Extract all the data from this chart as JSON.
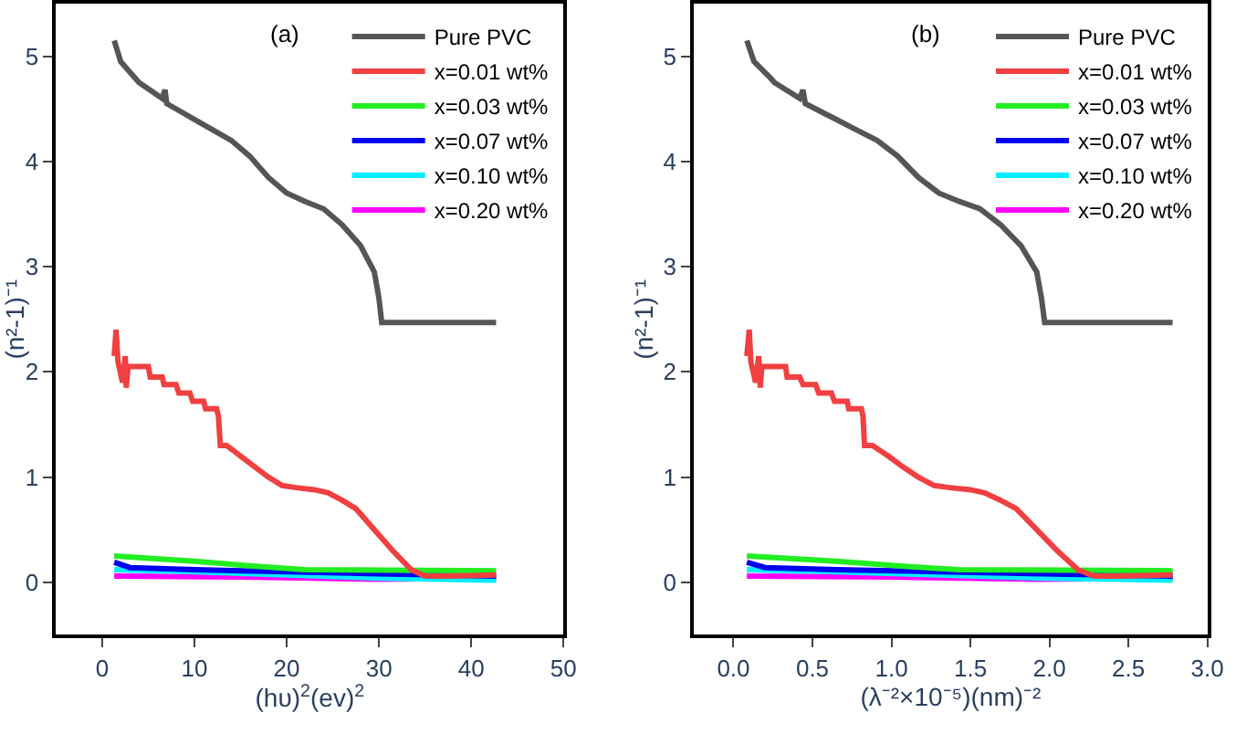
{
  "chart_data": [
    {
      "type": "line",
      "title": "(a)",
      "xlabel": "(hυ)$^{2}$(ev)$^{2}$",
      "ylabel": "(n²-1)⁻¹",
      "xlim": [
        -5,
        50
      ],
      "ylim": [
        -0.5,
        5.5
      ],
      "xticks": [
        0,
        10,
        20,
        30,
        40,
        50
      ],
      "yticks": [
        0,
        1,
        2,
        3,
        4,
        5
      ],
      "legend": "top right",
      "marker": "none",
      "line_style": "solid",
      "series": [
        {
          "name": "Pure PVC",
          "color": "#555555",
          "x": [
            1.3,
            2,
            3.5,
            4,
            6.5,
            6.8,
            7,
            8,
            10,
            12,
            14,
            16,
            18,
            20,
            22,
            24,
            26,
            28,
            29.5,
            30,
            30.3,
            42.7
          ],
          "values": [
            5.15,
            4.95,
            4.8,
            4.75,
            4.6,
            4.68,
            4.55,
            4.5,
            4.4,
            4.3,
            4.2,
            4.05,
            3.85,
            3.7,
            3.62,
            3.55,
            3.4,
            3.2,
            2.95,
            2.7,
            2.47,
            2.47
          ]
        },
        {
          "name": "x=0.01 wt%",
          "color": "#f04040",
          "x": [
            1.3,
            1.5,
            1.7,
            2.2,
            2.5,
            2.6,
            2.8,
            5,
            5.2,
            6.5,
            6.7,
            8,
            8.3,
            9.5,
            9.8,
            11,
            11.2,
            12.4,
            12.6,
            12.8,
            13.5,
            15,
            16.5,
            18,
            19.5,
            21,
            23,
            24.5,
            26,
            27.5,
            29.5,
            31.5,
            33.5,
            35,
            38,
            42.7
          ],
          "values": [
            2.15,
            2.4,
            2.1,
            1.9,
            2.15,
            1.85,
            2.05,
            2.05,
            1.95,
            1.95,
            1.88,
            1.88,
            1.8,
            1.8,
            1.72,
            1.72,
            1.65,
            1.65,
            1.58,
            1.3,
            1.3,
            1.2,
            1.1,
            1.0,
            0.92,
            0.9,
            0.88,
            0.85,
            0.78,
            0.7,
            0.5,
            0.3,
            0.12,
            0.06,
            0.06,
            0.07
          ]
        },
        {
          "name": "x=0.03 wt%",
          "color": "#22ee22",
          "x": [
            1.3,
            10,
            17,
            22,
            42.7
          ],
          "values": [
            0.25,
            0.2,
            0.15,
            0.12,
            0.11
          ]
        },
        {
          "name": "x=0.07 wt%",
          "color": "#0000ee",
          "x": [
            1.3,
            3,
            10,
            20,
            30,
            42.7
          ],
          "values": [
            0.19,
            0.14,
            0.12,
            0.1,
            0.08,
            0.06
          ]
        },
        {
          "name": "x=0.10 wt%",
          "color": "#00eeff",
          "x": [
            1.3,
            10,
            20,
            30,
            42.7
          ],
          "values": [
            0.12,
            0.1,
            0.07,
            0.04,
            0.02
          ]
        },
        {
          "name": "x=0.20 wt%",
          "color": "#ff00ff",
          "x": [
            1.3,
            15,
            30,
            42.7
          ],
          "values": [
            0.06,
            0.05,
            0.03,
            0.04
          ]
        }
      ]
    },
    {
      "type": "line",
      "title": "(b)",
      "xlabel": "(λ⁻²×10⁻⁵)(nm)⁻²",
      "ylabel": "(n²-1)⁻¹",
      "xlim": [
        -0.25,
        3.0
      ],
      "ylim": [
        -0.5,
        5.5
      ],
      "xticks": [
        {
          "value": 0,
          "label": "0.0"
        },
        0.5,
        {
          "value": 1,
          "label": "1.0"
        },
        1.5,
        {
          "value": 2,
          "label": "2.0"
        },
        2.5,
        {
          "value": 3,
          "label": "3.0"
        }
      ],
      "yticks": [
        0,
        1,
        2,
        3,
        4,
        5
      ],
      "legend": "top right",
      "marker": "none",
      "line_style": "solid",
      "series": [
        {
          "name": "Pure PVC",
          "color": "#555555",
          "x": [
            0.085,
            0.13,
            0.23,
            0.26,
            0.42,
            0.44,
            0.455,
            0.52,
            0.65,
            0.78,
            0.91,
            1.04,
            1.17,
            1.3,
            1.43,
            1.56,
            1.69,
            1.82,
            1.92,
            1.95,
            1.97,
            2.78
          ],
          "values": [
            5.15,
            4.95,
            4.8,
            4.75,
            4.6,
            4.68,
            4.55,
            4.5,
            4.4,
            4.3,
            4.2,
            4.05,
            3.85,
            3.7,
            3.62,
            3.55,
            3.4,
            3.2,
            2.95,
            2.7,
            2.47,
            2.47
          ]
        },
        {
          "name": "x=0.01 wt%",
          "color": "#f04040",
          "x": [
            0.085,
            0.1,
            0.11,
            0.14,
            0.16,
            0.17,
            0.18,
            0.33,
            0.34,
            0.42,
            0.44,
            0.52,
            0.54,
            0.62,
            0.64,
            0.72,
            0.73,
            0.81,
            0.82,
            0.83,
            0.88,
            0.98,
            1.07,
            1.17,
            1.27,
            1.37,
            1.5,
            1.59,
            1.69,
            1.79,
            1.92,
            2.05,
            2.18,
            2.28,
            2.47,
            2.78
          ],
          "values": [
            2.15,
            2.4,
            2.1,
            1.9,
            2.15,
            1.85,
            2.05,
            2.05,
            1.95,
            1.95,
            1.88,
            1.88,
            1.8,
            1.8,
            1.72,
            1.72,
            1.65,
            1.65,
            1.58,
            1.3,
            1.3,
            1.2,
            1.1,
            1.0,
            0.92,
            0.9,
            0.88,
            0.85,
            0.78,
            0.7,
            0.5,
            0.3,
            0.12,
            0.06,
            0.06,
            0.07
          ]
        },
        {
          "name": "x=0.03 wt%",
          "color": "#22ee22",
          "x": [
            0.085,
            0.65,
            1.1,
            1.43,
            2.78
          ],
          "values": [
            0.25,
            0.2,
            0.15,
            0.12,
            0.11
          ]
        },
        {
          "name": "x=0.07 wt%",
          "color": "#0000ee",
          "x": [
            0.085,
            0.2,
            0.65,
            1.3,
            1.95,
            2.78
          ],
          "values": [
            0.19,
            0.14,
            0.12,
            0.1,
            0.08,
            0.06
          ]
        },
        {
          "name": "x=0.10 wt%",
          "color": "#00eeff",
          "x": [
            0.085,
            0.65,
            1.3,
            1.95,
            2.78
          ],
          "values": [
            0.12,
            0.1,
            0.07,
            0.04,
            0.02
          ]
        },
        {
          "name": "x=0.20 wt%",
          "color": "#ff00ff",
          "x": [
            0.085,
            0.98,
            1.95,
            2.78
          ],
          "values": [
            0.06,
            0.05,
            0.03,
            0.04
          ]
        }
      ]
    }
  ]
}
